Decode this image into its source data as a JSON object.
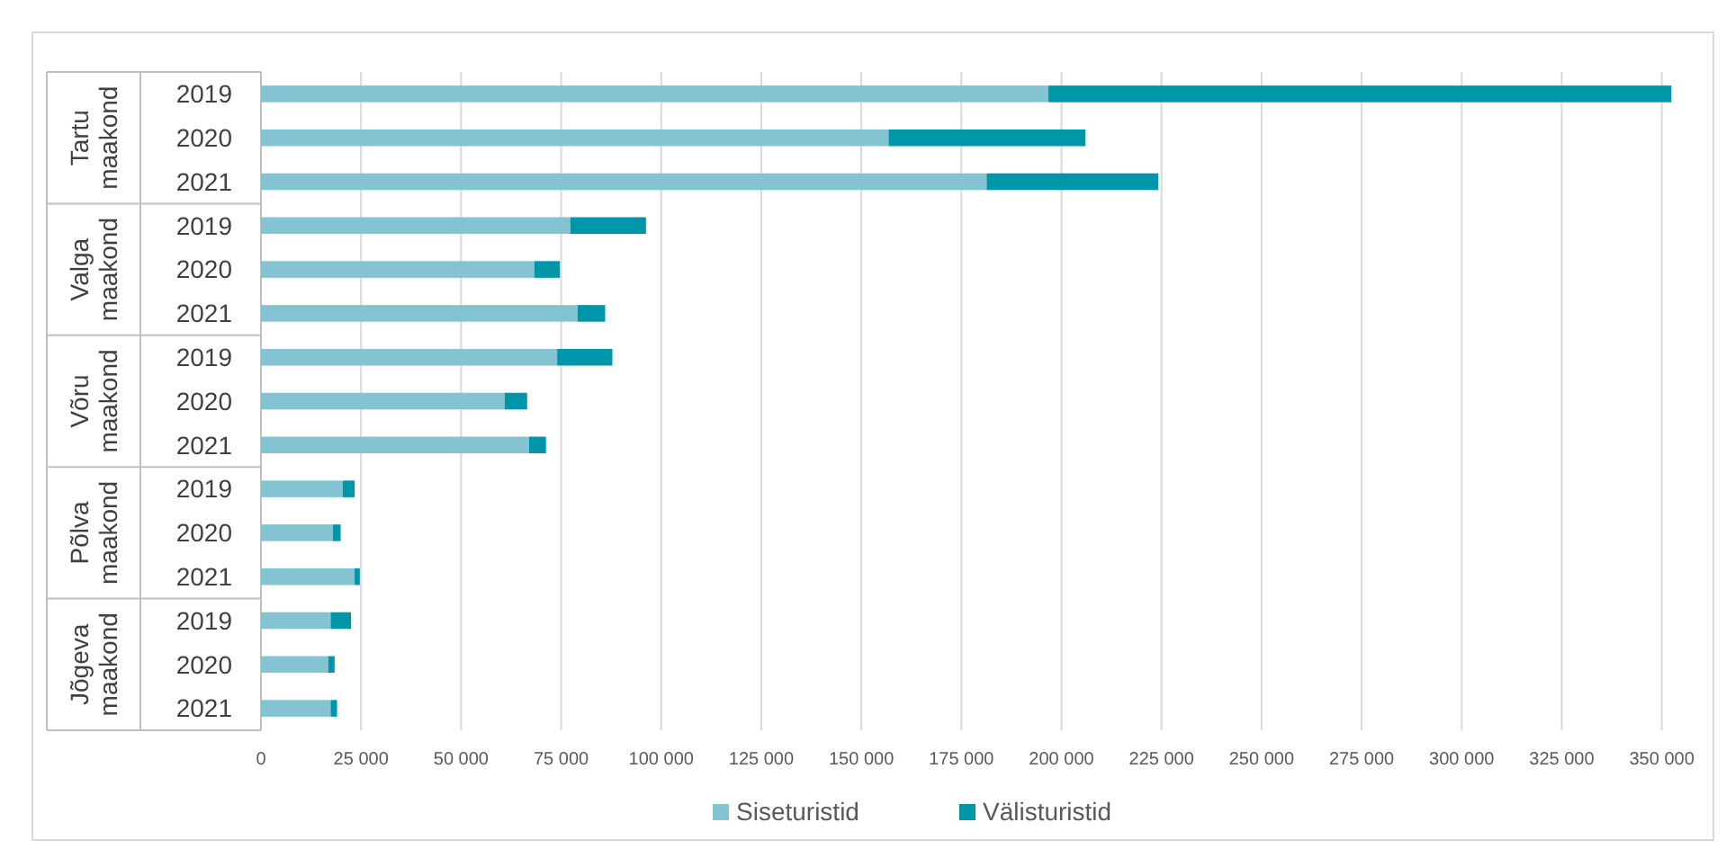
{
  "chart_data": {
    "type": "bar",
    "orientation": "horizontal",
    "stacked": true,
    "categories": [
      "2019",
      "2020",
      "2021",
      "2019",
      "2020",
      "2021",
      "2019",
      "2020",
      "2021",
      "2019",
      "2020",
      "2021",
      "2019",
      "2020",
      "2021"
    ],
    "series": [
      {
        "name": "Siseturistid",
        "color": "#84c3d2",
        "values": [
          196700,
          156800,
          181300,
          77300,
          68300,
          79100,
          74000,
          60900,
          67000,
          20400,
          18000,
          23400,
          17400,
          16800,
          17400
        ]
      },
      {
        "name": "Välisturistid",
        "color": "#0096aa",
        "values": [
          155700,
          49200,
          42900,
          18900,
          6400,
          6900,
          13800,
          5600,
          4200,
          3000,
          1900,
          1300,
          5100,
          1600,
          1600
        ]
      }
    ],
    "xlim": [
      0,
      353000
    ],
    "xticks": [
      {
        "value": 0,
        "label": "0"
      },
      {
        "value": 25000,
        "label": "25 000"
      },
      {
        "value": 50000,
        "label": "50 000"
      },
      {
        "value": 75000,
        "label": "75 000"
      },
      {
        "value": 100000,
        "label": "100 000"
      },
      {
        "value": 125000,
        "label": "125 000"
      },
      {
        "value": 150000,
        "label": "150 000"
      },
      {
        "value": 175000,
        "label": "175 000"
      },
      {
        "value": 200000,
        "label": "200 000"
      },
      {
        "value": 225000,
        "label": "225 000"
      },
      {
        "value": 250000,
        "label": "250 000"
      },
      {
        "value": 275000,
        "label": "275 000"
      },
      {
        "value": 300000,
        "label": "300 000"
      },
      {
        "value": 325000,
        "label": "325 000"
      },
      {
        "value": 350000,
        "label": "350 000"
      }
    ],
    "annotations": [
      "Tartu maakond",
      "Valga maakond",
      "Võru maakond",
      "Põlva maakond",
      "Jõgeva maakond"
    ],
    "grid": "x",
    "legend": "bottom"
  }
}
